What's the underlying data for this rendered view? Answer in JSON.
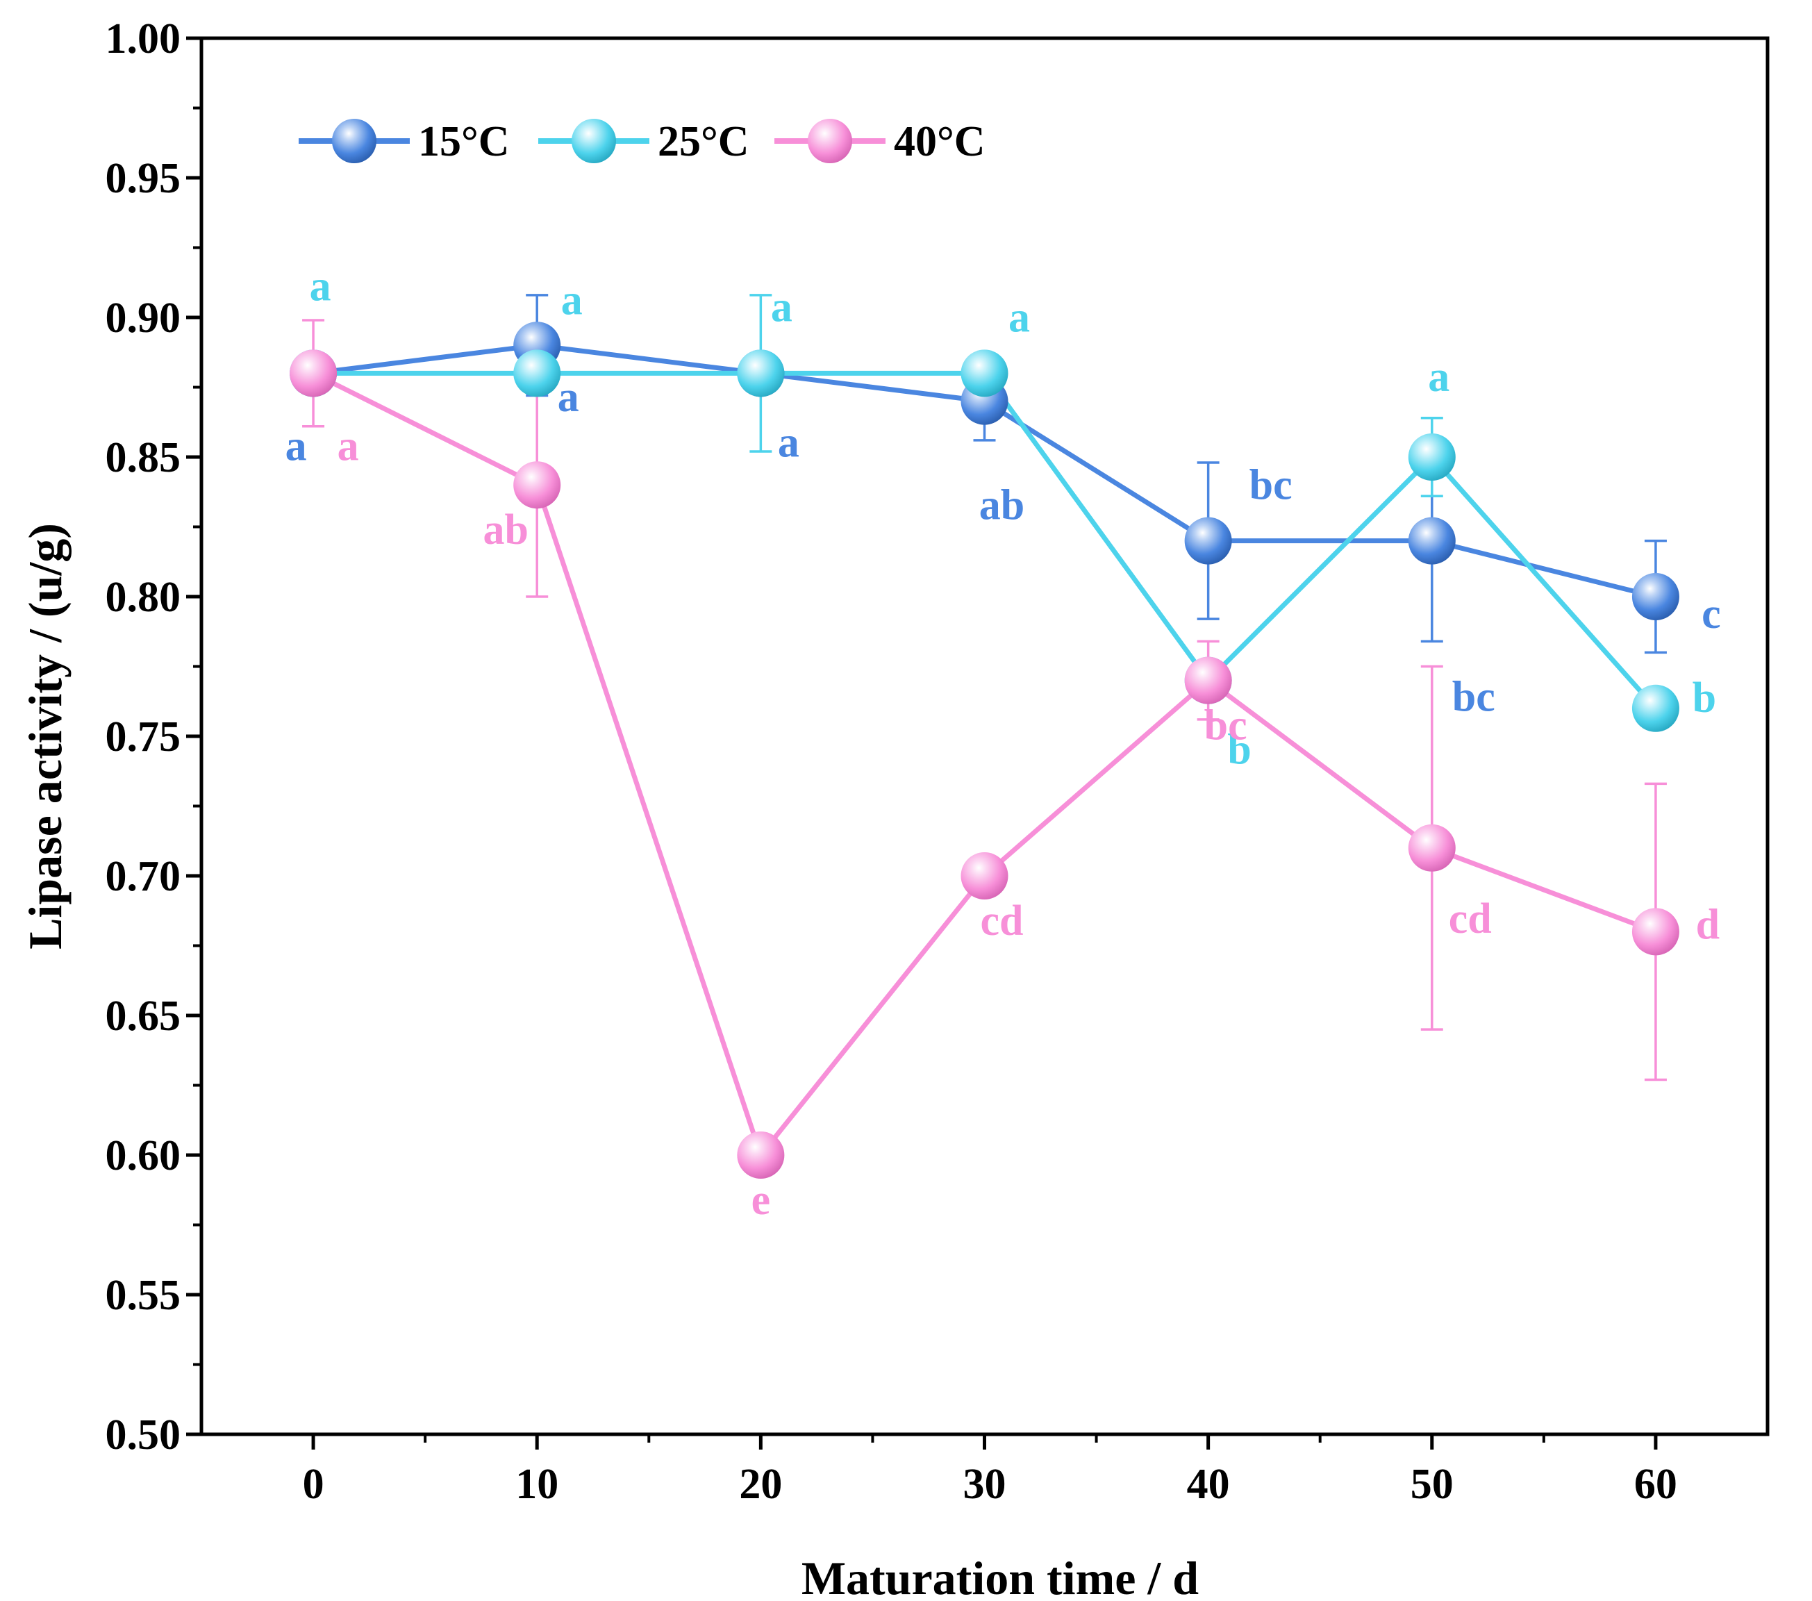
{
  "chart_data": {
    "type": "line",
    "xlabel": "Maturation time / d",
    "ylabel": "Lipase activity / (u/g)",
    "x": [
      0,
      10,
      20,
      30,
      40,
      50,
      60
    ],
    "xticks": [
      0,
      10,
      20,
      30,
      40,
      50,
      60
    ],
    "xtick_labels": [
      "0",
      "10",
      "20",
      "30",
      "40",
      "50",
      "60"
    ],
    "xlim": [
      -5,
      65
    ],
    "ylim": [
      0.5,
      1.0
    ],
    "yticks": [
      0.5,
      0.55,
      0.6,
      0.65,
      0.7,
      0.75,
      0.8,
      0.85,
      0.9,
      0.95,
      1.0
    ],
    "ytick_labels": [
      "0.50",
      "0.55",
      "0.60",
      "0.65",
      "0.70",
      "0.75",
      "0.80",
      "0.85",
      "0.90",
      "0.95",
      "1.00"
    ],
    "legend_position": "top-left",
    "grid": false,
    "series": [
      {
        "name": "15°C",
        "color": "#4a86e0",
        "values": [
          0.88,
          0.89,
          0.88,
          0.87,
          0.82,
          0.82,
          0.8
        ],
        "errors": [
          0.0,
          0.018,
          0.0,
          0.014,
          0.028,
          0.036,
          0.02
        ],
        "letters": [
          "a",
          "a",
          "a",
          "ab",
          "bc",
          "bc",
          "c"
        ]
      },
      {
        "name": "25°C",
        "color": "#4dd3ec",
        "values": [
          0.88,
          0.88,
          0.88,
          0.88,
          0.77,
          0.85,
          0.76
        ],
        "errors": [
          0.0,
          0.0,
          0.028,
          0.0,
          0.0,
          0.014,
          0.0
        ],
        "letters": [
          "a",
          "a",
          "a",
          "a",
          "b",
          "a",
          "b"
        ]
      },
      {
        "name": "40°C",
        "color": "#f78fd8",
        "values": [
          0.88,
          0.84,
          0.6,
          0.7,
          0.77,
          0.71,
          0.68
        ],
        "errors": [
          0.019,
          0.04,
          0.0,
          0.0,
          0.014,
          0.065,
          0.053
        ],
        "letters": [
          "a",
          "ab",
          "e",
          "cd",
          "bc",
          "cd",
          "d"
        ]
      }
    ]
  }
}
